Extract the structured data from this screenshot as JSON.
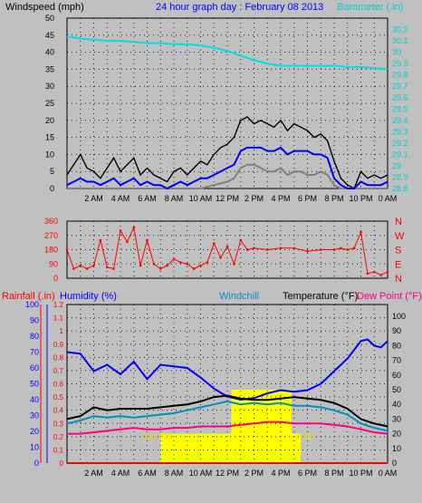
{
  "header": {
    "wind_label": "Windspeed (mph)",
    "title": "24 hour graph day : February 08 2013",
    "baro_label": "Barometer (.in)"
  },
  "panel3_labels": {
    "rain": "Rainfall (.in)",
    "humidity": "Humidity (%)",
    "windchill": "Windchill",
    "temperature": "Temperature (°F)",
    "dewpoint": "Dew Point (°F)",
    "sunrise": "Sun rise",
    "sunset": "Set"
  },
  "colors": {
    "bg": "#c0c0c0",
    "wind_gust": "#000000",
    "wind_avg": "#0000ff",
    "wind_min": "#808080",
    "barometer": "#00e0e0",
    "direction": "#ff0000",
    "temperature": "#000000",
    "humidity": "#0000ff",
    "windchill": "#0090c0",
    "dewpoint": "#ff0080",
    "rain": "#ff0000",
    "sun": "#ffff00"
  },
  "chart_data": [
    {
      "type": "line",
      "name": "wind_baro",
      "x_ticks": [
        "2 AM",
        "4 AM",
        "6 AM",
        "8 AM",
        "10 AM",
        "12 PM",
        "2 PM",
        "4 PM",
        "6 PM",
        "8 PM",
        "10 PM",
        "0 AM"
      ],
      "y_left": {
        "label": "Windspeed (mph)",
        "range": [
          0,
          50
        ],
        "ticks": [
          0,
          5,
          10,
          15,
          20,
          25,
          30,
          35,
          40,
          45,
          50
        ]
      },
      "y_right": {
        "label": "Barometer (.in)",
        "range": [
          28.8,
          30.3
        ],
        "ticks": [
          "28.8",
          "28.9",
          "29",
          "29.1",
          "29.2",
          "29.3",
          "29.4",
          "29.5",
          "29.6",
          "29.7",
          "29.8",
          "29.9",
          "30",
          "30.1",
          "30.2"
        ]
      },
      "series": [
        {
          "key": "gust",
          "x": [
            0,
            0.5,
            1,
            1.5,
            2,
            2.5,
            3,
            3.5,
            4,
            4.5,
            5,
            5.5,
            6,
            6.5,
            7,
            7.5,
            8,
            8.5,
            9,
            9.5,
            10,
            10.5,
            11,
            11.5,
            12,
            12.5,
            13,
            13.5,
            14,
            14.5,
            15,
            15.5,
            16,
            16.5,
            17,
            17.5,
            18,
            18.5,
            19,
            19.5,
            20,
            20.5,
            21,
            21.5,
            22,
            22.5,
            23,
            23.5,
            24
          ],
          "y": [
            4,
            7,
            10,
            6,
            5,
            3,
            6,
            9,
            5,
            7,
            9,
            4,
            6,
            4,
            3,
            2,
            5,
            6,
            4,
            6,
            8,
            7,
            10,
            12,
            13,
            15,
            20,
            21,
            19,
            20,
            19,
            18,
            20,
            17,
            19,
            18,
            17,
            15,
            16,
            14,
            8,
            3,
            1,
            0,
            5,
            3,
            4,
            3,
            4
          ]
        },
        {
          "key": "average",
          "x": [
            0,
            0.5,
            1,
            1.5,
            2,
            2.5,
            3,
            3.5,
            4,
            4.5,
            5,
            5.5,
            6,
            6.5,
            7,
            7.5,
            8,
            8.5,
            9,
            9.5,
            10,
            10.5,
            11,
            11.5,
            12,
            12.5,
            13,
            13.5,
            14,
            14.5,
            15,
            15.5,
            16,
            16.5,
            17,
            17.5,
            18,
            18.5,
            19,
            19.5,
            20,
            20.5,
            21,
            21.5,
            22,
            22.5,
            23,
            23.5,
            24
          ],
          "y": [
            1,
            2,
            3,
            2,
            2,
            1,
            2,
            3,
            1,
            2,
            3,
            1,
            2,
            1,
            1,
            0,
            1,
            2,
            1,
            2,
            3,
            3,
            4,
            5,
            6,
            7,
            11,
            12,
            12,
            12,
            11,
            11,
            12,
            10,
            11,
            11,
            11,
            10,
            10,
            9,
            3,
            1,
            0,
            0,
            2,
            1,
            1,
            1,
            2
          ]
        },
        {
          "key": "minimum",
          "x": [
            0,
            2,
            4,
            6,
            8,
            10,
            11,
            12,
            12.5,
            13,
            13.5,
            14,
            14.5,
            15,
            15.5,
            16,
            16.5,
            17,
            17.5,
            18,
            18.5,
            19,
            19.5,
            20,
            20.5,
            24
          ],
          "y": [
            0,
            0,
            0,
            0,
            0,
            0,
            1,
            2,
            3,
            6,
            7,
            7,
            6,
            5,
            5,
            6,
            4,
            5,
            5,
            4,
            4,
            5,
            4,
            1,
            0,
            0
          ]
        },
        {
          "key": "barometer",
          "x": [
            0,
            1,
            2,
            3,
            4,
            5,
            6,
            7,
            8,
            9,
            10,
            11,
            12,
            13,
            14,
            15,
            16,
            17,
            18,
            19,
            20,
            21,
            22,
            23,
            24
          ],
          "y": [
            30.14,
            30.12,
            30.11,
            30.1,
            30.1,
            30.09,
            30.08,
            30.08,
            30.07,
            30.07,
            30.06,
            30.04,
            30.01,
            29.97,
            29.93,
            29.9,
            29.88,
            29.88,
            29.88,
            29.88,
            29.88,
            29.87,
            29.87,
            29.86,
            29.85
          ]
        }
      ]
    },
    {
      "type": "scatter",
      "name": "wind_direction",
      "y_ticks": [
        0,
        90,
        180,
        270,
        360
      ],
      "compass_labels": [
        "N",
        "W",
        "S",
        "E",
        "N"
      ],
      "x": [
        0,
        0.5,
        1,
        1.5,
        2,
        2.5,
        3,
        3.5,
        4,
        4.5,
        5,
        5.5,
        6,
        6.5,
        7,
        7.5,
        8,
        8.5,
        9,
        9.5,
        10,
        10.5,
        11,
        11.5,
        12,
        12.5,
        13,
        13.5,
        14,
        15,
        16,
        17,
        18,
        19,
        20,
        20.5,
        21,
        21.5,
        22,
        22.5,
        23,
        23.5,
        24
      ],
      "y": [
        180,
        60,
        80,
        60,
        80,
        240,
        70,
        60,
        300,
        230,
        320,
        80,
        240,
        90,
        60,
        80,
        120,
        100,
        90,
        60,
        80,
        100,
        220,
        130,
        200,
        90,
        240,
        180,
        190,
        180,
        190,
        190,
        170,
        180,
        180,
        190,
        180,
        190,
        290,
        30,
        40,
        20,
        40
      ]
    },
    {
      "type": "line",
      "name": "temp_humidity",
      "y_left_rain": {
        "range": [
          0,
          1.2
        ],
        "ticks": [
          "0",
          "0.1",
          "0.2",
          "0.3",
          "0.4",
          "0.5",
          "0.6",
          "0.7",
          "0.8",
          "0.9",
          "1",
          "1.1",
          "1.2"
        ]
      },
      "y_left_humidity": {
        "range": [
          0,
          100
        ],
        "ticks": [
          0,
          10,
          20,
          30,
          40,
          50,
          60,
          70,
          80,
          90,
          100
        ]
      },
      "y_right": {
        "range": [
          0,
          108
        ],
        "ticks": [
          0,
          10,
          20,
          30,
          40,
          50,
          60,
          70,
          80,
          90,
          100
        ]
      },
      "sunrise_hour": 7.0,
      "sunset_hour": 17.5,
      "series": [
        {
          "key": "humidity",
          "x": [
            0,
            1,
            2,
            3,
            4,
            5,
            6,
            7,
            8,
            9,
            10,
            11,
            12,
            13,
            14,
            15,
            16,
            17,
            18,
            19,
            20,
            21,
            22,
            22.5,
            23,
            23.5,
            24
          ],
          "y": [
            70,
            69,
            58,
            62,
            56,
            64,
            53,
            62,
            61,
            60,
            54,
            47,
            42,
            40,
            41,
            44,
            46,
            45,
            46,
            50,
            58,
            66,
            77,
            78,
            74,
            73,
            77
          ]
        },
        {
          "key": "temperature",
          "x": [
            0,
            1,
            2,
            3,
            4,
            5,
            6,
            7,
            8,
            9,
            10,
            11,
            12,
            13,
            14,
            15,
            16,
            17,
            18,
            19,
            20,
            21,
            22,
            23,
            24
          ],
          "y": [
            30,
            32,
            38,
            36,
            37,
            37,
            37,
            38,
            39,
            40,
            42,
            45,
            46,
            44,
            43,
            43,
            44,
            45,
            44,
            43,
            41,
            37,
            30,
            27,
            25
          ]
        },
        {
          "key": "windchill",
          "x": [
            0,
            1,
            2,
            3,
            4,
            5,
            6,
            7,
            8,
            9,
            10,
            11,
            12,
            13,
            14,
            15,
            16,
            17,
            18,
            19,
            20,
            21,
            22,
            23,
            24
          ],
          "y": [
            27,
            29,
            32,
            31,
            32,
            31,
            32,
            33,
            34,
            36,
            38,
            40,
            42,
            40,
            41,
            40,
            41,
            39,
            39,
            38,
            36,
            33,
            27,
            24,
            22
          ]
        },
        {
          "key": "dewpoint",
          "x": [
            0,
            1,
            2,
            3,
            4,
            5,
            6,
            7,
            8,
            9,
            10,
            11,
            12,
            13,
            14,
            15,
            16,
            17,
            18,
            19,
            20,
            21,
            22,
            23,
            24
          ],
          "y": [
            20,
            20,
            21,
            22,
            23,
            24,
            23,
            23,
            24,
            24,
            25,
            25,
            25,
            26,
            27,
            28,
            28,
            27,
            27,
            27,
            26,
            25,
            23,
            21,
            20
          ]
        },
        {
          "key": "rainfall",
          "x": [
            0,
            24
          ],
          "y": [
            0,
            0
          ]
        }
      ]
    }
  ]
}
